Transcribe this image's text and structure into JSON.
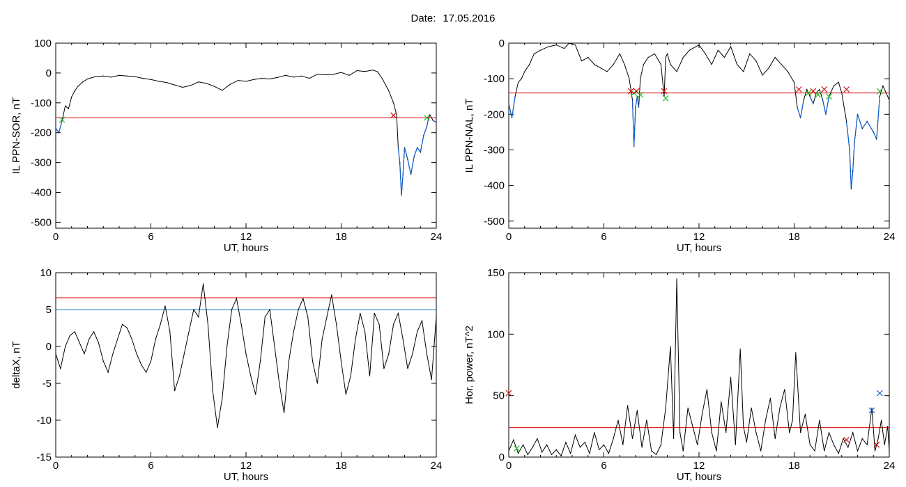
{
  "figure": {
    "date_label": "Date:",
    "date_value": "17.05.2016"
  },
  "colors": {
    "trace": "#000000",
    "threshold": "#e00000",
    "secondary_threshold": "#1a7fc0",
    "marker_red": "#d01010",
    "marker_green": "#20c020",
    "marker_blue": "#1060d0",
    "highlight_trace": "#1060d0"
  },
  "chart_data": [
    {
      "id": "sor",
      "type": "line",
      "xlabel": "UT, hours",
      "ylabel": "IL PPN-SOR, nT",
      "xlim": [
        0,
        24
      ],
      "ylim": [
        -520,
        100
      ],
      "xticks": [
        0,
        6,
        12,
        18,
        24
      ],
      "yticks": [
        100,
        0,
        -100,
        -200,
        -300,
        -400,
        -500
      ],
      "threshold": -150,
      "series": [
        {
          "x": [
            0,
            0.2,
            0.4,
            0.6,
            0.8,
            1.0,
            1.2,
            1.4,
            1.7,
            2.0,
            2.5,
            3.0,
            3.5,
            4.0,
            4.5,
            5.0,
            5.5,
            6.0,
            6.5,
            7.0,
            7.5,
            8.0,
            8.5,
            9.0,
            9.5,
            10.0,
            10.5,
            11.0,
            11.5,
            12.0,
            12.5,
            13.0,
            13.5,
            14.0,
            14.5,
            15.0,
            15.5,
            16.0,
            16.5,
            17.0,
            17.5,
            18.0,
            18.5,
            19.0,
            19.5,
            20.0,
            20.3,
            20.6,
            21.0,
            21.3,
            21.5,
            21.6,
            21.7,
            21.8,
            21.9,
            22.0,
            22.2,
            22.4,
            22.6,
            22.8,
            23.0,
            23.2,
            23.4,
            23.5,
            23.6,
            23.8,
            24.0
          ],
          "y": [
            -185,
            -200,
            -160,
            -110,
            -120,
            -80,
            -60,
            -45,
            -30,
            -20,
            -12,
            -10,
            -14,
            -8,
            -10,
            -12,
            -18,
            -22,
            -28,
            -32,
            -40,
            -48,
            -42,
            -30,
            -35,
            -45,
            -58,
            -38,
            -25,
            -28,
            -22,
            -18,
            -20,
            -15,
            -8,
            -14,
            -10,
            -18,
            -4,
            -6,
            -5,
            2,
            -8,
            8,
            5,
            10,
            4,
            -20,
            -60,
            -100,
            -140,
            -250,
            -300,
            -410,
            -340,
            -250,
            -290,
            -340,
            -280,
            -250,
            -265,
            -210,
            -180,
            -155,
            -140,
            -160,
            -165
          ]
        }
      ],
      "markers": [
        {
          "x": 0.4,
          "y": -157,
          "color": "green"
        },
        {
          "x": 21.3,
          "y": -142,
          "color": "red"
        },
        {
          "x": 23.4,
          "y": -150,
          "color": "green"
        }
      ]
    },
    {
      "id": "nal",
      "type": "line",
      "xlabel": "UT, hours",
      "ylabel": "IL PPN-NAL, nT",
      "xlim": [
        0,
        24
      ],
      "ylim": [
        -520,
        0
      ],
      "xticks": [
        0,
        6,
        12,
        18,
        24
      ],
      "yticks": [
        0,
        -100,
        -200,
        -300,
        -400,
        -500
      ],
      "threshold": -140,
      "series": [
        {
          "x": [
            0,
            0.2,
            0.4,
            0.6,
            0.8,
            1.0,
            1.3,
            1.6,
            2.0,
            2.5,
            3.0,
            3.5,
            3.8,
            4.2,
            4.6,
            5.0,
            5.4,
            5.8,
            6.2,
            6.6,
            7.0,
            7.3,
            7.6,
            7.8,
            7.9,
            8.0,
            8.1,
            8.2,
            8.3,
            8.5,
            8.8,
            9.2,
            9.6,
            9.8,
            9.9,
            10.0,
            10.2,
            10.6,
            11.0,
            11.4,
            11.8,
            12.0,
            12.4,
            12.8,
            13.2,
            13.6,
            14.0,
            14.4,
            14.8,
            15.2,
            15.6,
            16.0,
            16.4,
            16.8,
            17.2,
            17.6,
            18.0,
            18.2,
            18.4,
            18.6,
            18.8,
            19.0,
            19.2,
            19.4,
            19.6,
            19.8,
            20.0,
            20.2,
            20.5,
            20.8,
            21.0,
            21.3,
            21.5,
            21.6,
            21.7,
            21.8,
            22.0,
            22.3,
            22.6,
            23.0,
            23.2,
            23.4,
            23.6,
            23.8,
            24.0
          ],
          "y": [
            -170,
            -210,
            -150,
            -110,
            -100,
            -80,
            -60,
            -30,
            -20,
            -10,
            -5,
            -15,
            0,
            -5,
            -50,
            -40,
            -60,
            -70,
            -80,
            -60,
            -30,
            -60,
            -100,
            -160,
            -290,
            -180,
            -150,
            -180,
            -100,
            -60,
            -40,
            -30,
            -60,
            -150,
            -40,
            -30,
            -60,
            -80,
            -40,
            -20,
            -10,
            -5,
            -30,
            -60,
            -20,
            -40,
            -10,
            -60,
            -80,
            -30,
            -50,
            -90,
            -70,
            -40,
            -60,
            -80,
            -110,
            -180,
            -210,
            -160,
            -130,
            -150,
            -170,
            -140,
            -130,
            -160,
            -200,
            -150,
            -120,
            -110,
            -140,
            -220,
            -300,
            -410,
            -360,
            -280,
            -200,
            -240,
            -220,
            -250,
            -270,
            -150,
            -120,
            -140,
            -160
          ]
        }
      ],
      "markers": [
        {
          "x": 7.7,
          "y": -135,
          "color": "red"
        },
        {
          "x": 7.9,
          "y": -140,
          "color": "green"
        },
        {
          "x": 8.05,
          "y": -135,
          "color": "red"
        },
        {
          "x": 8.3,
          "y": -145,
          "color": "green"
        },
        {
          "x": 9.8,
          "y": -135,
          "color": "red"
        },
        {
          "x": 9.9,
          "y": -155,
          "color": "green"
        },
        {
          "x": 18.3,
          "y": -130,
          "color": "red"
        },
        {
          "x": 18.9,
          "y": -140,
          "color": "green"
        },
        {
          "x": 19.2,
          "y": -135,
          "color": "red"
        },
        {
          "x": 19.5,
          "y": -145,
          "color": "green"
        },
        {
          "x": 19.9,
          "y": -130,
          "color": "red"
        },
        {
          "x": 20.2,
          "y": -150,
          "color": "green"
        },
        {
          "x": 21.3,
          "y": -130,
          "color": "red"
        },
        {
          "x": 23.4,
          "y": -135,
          "color": "green"
        }
      ]
    },
    {
      "id": "deltax",
      "type": "line",
      "xlabel": "UT, hours",
      "ylabel": "deltaX, nT",
      "xlim": [
        0,
        24
      ],
      "ylim": [
        -15,
        10
      ],
      "xticks": [
        0,
        6,
        12,
        18,
        24
      ],
      "yticks": [
        10,
        5,
        0,
        -5,
        -10,
        -15
      ],
      "threshold": 6.6,
      "secondary_threshold": 5.0,
      "series": [
        {
          "x": [
            0,
            0.3,
            0.6,
            0.9,
            1.2,
            1.5,
            1.8,
            2.1,
            2.4,
            2.7,
            3.0,
            3.3,
            3.6,
            3.9,
            4.2,
            4.5,
            4.8,
            5.1,
            5.4,
            5.7,
            6.0,
            6.3,
            6.6,
            6.9,
            7.2,
            7.5,
            7.8,
            8.1,
            8.4,
            8.7,
            9.0,
            9.3,
            9.6,
            9.9,
            10.2,
            10.5,
            10.8,
            11.1,
            11.4,
            11.7,
            12.0,
            12.3,
            12.6,
            12.9,
            13.2,
            13.5,
            13.8,
            14.1,
            14.4,
            14.7,
            15.0,
            15.3,
            15.6,
            15.9,
            16.2,
            16.5,
            16.8,
            17.1,
            17.4,
            17.7,
            18.0,
            18.3,
            18.6,
            18.9,
            19.2,
            19.5,
            19.8,
            20.1,
            20.4,
            20.7,
            21.0,
            21.3,
            21.6,
            21.9,
            22.2,
            22.5,
            22.8,
            23.1,
            23.4,
            23.7,
            24.0
          ],
          "y": [
            -1,
            -3,
            0,
            1.5,
            2,
            0.5,
            -1,
            1,
            2,
            0.5,
            -2,
            -3.5,
            -1,
            1,
            3,
            2.5,
            1,
            -1,
            -2.5,
            -3.5,
            -2,
            1,
            3,
            5.5,
            2,
            -6,
            -4,
            -1,
            2,
            5,
            4,
            8.5,
            3,
            -6,
            -11,
            -7,
            0,
            5,
            6.5,
            3,
            -1,
            -4,
            -6.5,
            -2,
            4,
            5,
            0,
            -5,
            -9,
            -2,
            2,
            5,
            6.5,
            4,
            -2,
            -5,
            1,
            4,
            7,
            3,
            -2,
            -6.5,
            -4,
            1,
            4.5,
            2,
            -4,
            4.5,
            3,
            -3,
            -1,
            3,
            4.5,
            1,
            -3,
            -1,
            2,
            3.5,
            -1,
            -4.5,
            4
          ]
        }
      ],
      "markers": []
    },
    {
      "id": "power",
      "type": "line",
      "xlabel": "UT, hours",
      "ylabel": "Hor. power, nT^2",
      "xlim": [
        0,
        24
      ],
      "ylim": [
        0,
        150
      ],
      "xticks": [
        0,
        6,
        12,
        18,
        24
      ],
      "yticks": [
        0,
        50,
        100,
        150
      ],
      "threshold": 24,
      "series": [
        {
          "x": [
            0,
            0.3,
            0.6,
            0.9,
            1.2,
            1.5,
            1.8,
            2.1,
            2.4,
            2.7,
            3.0,
            3.3,
            3.6,
            3.9,
            4.2,
            4.5,
            4.8,
            5.1,
            5.4,
            5.7,
            6.0,
            6.3,
            6.6,
            6.9,
            7.2,
            7.5,
            7.8,
            8.1,
            8.4,
            8.7,
            9.0,
            9.3,
            9.6,
            9.9,
            10.2,
            10.4,
            10.6,
            10.8,
            11.0,
            11.3,
            11.6,
            11.9,
            12.2,
            12.5,
            12.8,
            13.1,
            13.4,
            13.7,
            14.0,
            14.3,
            14.6,
            14.8,
            15.0,
            15.3,
            15.6,
            15.9,
            16.2,
            16.5,
            16.8,
            17.1,
            17.4,
            17.7,
            17.9,
            18.1,
            18.4,
            18.7,
            19.0,
            19.3,
            19.6,
            19.9,
            20.2,
            20.5,
            20.8,
            21.1,
            21.4,
            21.7,
            22.0,
            22.3,
            22.6,
            22.9,
            23.1,
            23.3,
            23.5,
            23.7,
            23.9,
            24.0
          ],
          "y": [
            5,
            14,
            3,
            10,
            2,
            8,
            15,
            4,
            10,
            2,
            6,
            1,
            12,
            3,
            18,
            8,
            12,
            3,
            20,
            6,
            10,
            3,
            15,
            30,
            10,
            42,
            15,
            38,
            8,
            30,
            5,
            2,
            10,
            40,
            90,
            15,
            145,
            20,
            5,
            40,
            25,
            10,
            35,
            55,
            20,
            5,
            45,
            20,
            65,
            10,
            88,
            25,
            12,
            40,
            20,
            5,
            30,
            48,
            15,
            40,
            55,
            20,
            30,
            85,
            20,
            35,
            10,
            5,
            30,
            5,
            20,
            10,
            3,
            15,
            8,
            20,
            5,
            15,
            10,
            40,
            5,
            15,
            30,
            10,
            25,
            5
          ]
        }
      ],
      "markers": [
        {
          "x": 0.0,
          "y": 52,
          "color": "red"
        },
        {
          "x": 0.5,
          "y": 7,
          "color": "green"
        },
        {
          "x": 21.3,
          "y": 14,
          "color": "red"
        },
        {
          "x": 22.9,
          "y": 38,
          "color": "blue"
        },
        {
          "x": 23.4,
          "y": 52,
          "color": "blue"
        },
        {
          "x": 23.2,
          "y": 10,
          "color": "red"
        }
      ]
    }
  ]
}
